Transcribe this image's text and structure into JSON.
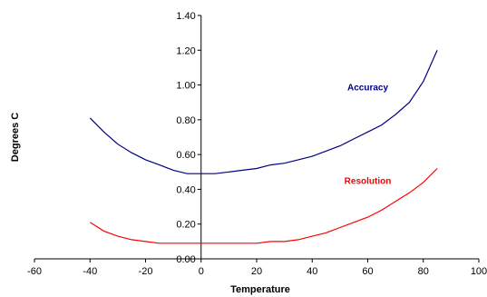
{
  "chart_data": {
    "type": "line",
    "title": "",
    "xlabel": "Temperature",
    "ylabel": "Degrees C",
    "xlim": [
      -60,
      100
    ],
    "ylim": [
      0,
      1.4
    ],
    "xticks": [
      "-60",
      "-40",
      "-20",
      "0",
      "20",
      "40",
      "60",
      "80",
      "100"
    ],
    "yticks": [
      "0.00",
      "0.20",
      "0.40",
      "0.60",
      "0.80",
      "1.00",
      "1.20",
      "1.40"
    ],
    "grid": false,
    "legend": "none",
    "series": [
      {
        "name": "Accuracy",
        "color": "#000080",
        "x": [
          -40,
          -35,
          -30,
          -25,
          -20,
          -15,
          -10,
          -5,
          0,
          5,
          10,
          15,
          20,
          25,
          30,
          35,
          40,
          45,
          50,
          55,
          60,
          65,
          70,
          75,
          80,
          85
        ],
        "y": [
          0.81,
          0.73,
          0.66,
          0.61,
          0.57,
          0.54,
          0.51,
          0.49,
          0.49,
          0.49,
          0.5,
          0.51,
          0.52,
          0.54,
          0.55,
          0.57,
          0.59,
          0.62,
          0.65,
          0.69,
          0.73,
          0.77,
          0.83,
          0.9,
          1.02,
          1.2
        ]
      },
      {
        "name": "Resolution",
        "color": "#ff0000",
        "x": [
          -40,
          -35,
          -30,
          -25,
          -20,
          -15,
          -10,
          -5,
          0,
          5,
          10,
          15,
          20,
          25,
          30,
          35,
          40,
          45,
          50,
          55,
          60,
          65,
          70,
          75,
          80,
          85
        ],
        "y": [
          0.21,
          0.16,
          0.13,
          0.11,
          0.1,
          0.09,
          0.09,
          0.09,
          0.09,
          0.09,
          0.09,
          0.09,
          0.09,
          0.1,
          0.1,
          0.11,
          0.13,
          0.15,
          0.18,
          0.21,
          0.24,
          0.28,
          0.33,
          0.38,
          0.44,
          0.52
        ]
      }
    ]
  }
}
